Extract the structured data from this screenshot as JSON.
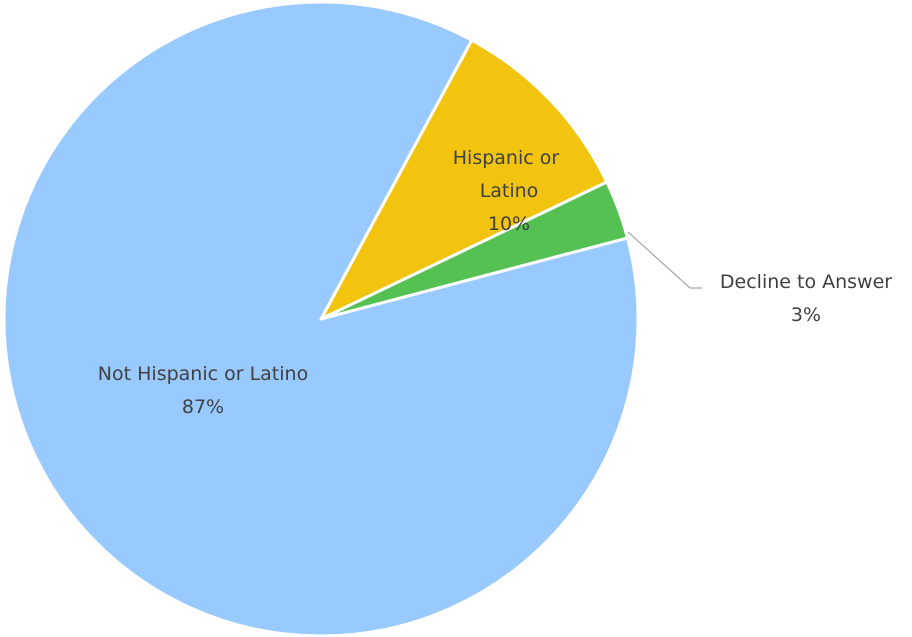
{
  "chart_data": {
    "type": "pie",
    "title": "",
    "categories": [
      "Hispanic or Latino",
      "Decline to Answer",
      "Not Hispanic or Latino"
    ],
    "values": [
      10,
      3,
      87
    ],
    "value_labels": [
      "10%",
      "3%",
      "87%"
    ],
    "colors": [
      "#f2c40f",
      "#54c152",
      "#99caff"
    ],
    "legend": "none",
    "data_labels": "on slices, with leader line for small slice"
  }
}
